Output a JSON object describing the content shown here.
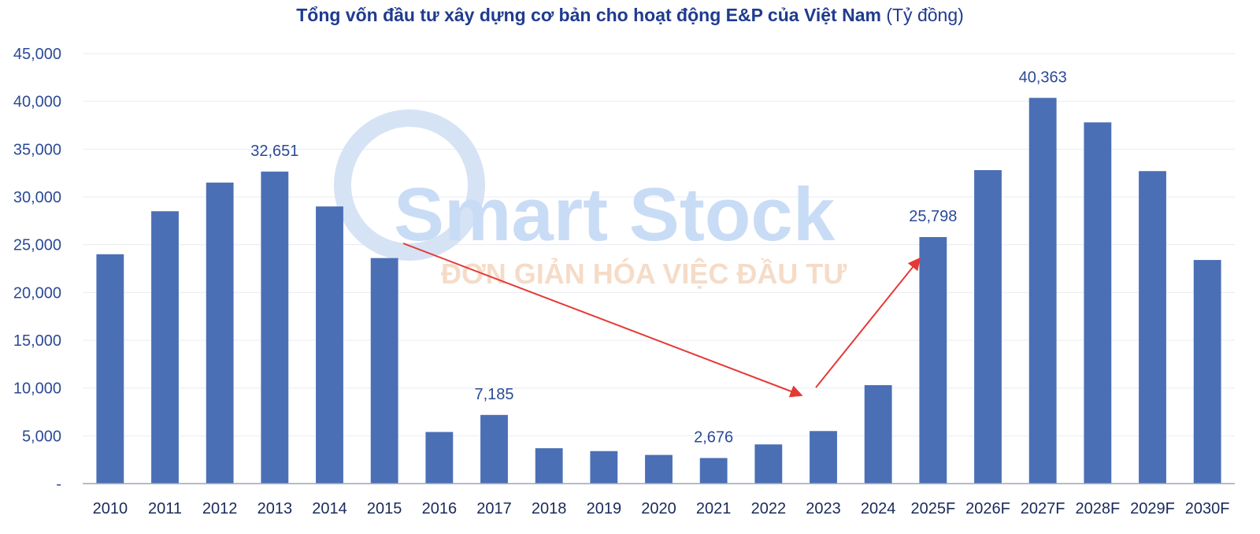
{
  "watermark": {
    "brand": "Smart Stock",
    "tagline": "ĐƠN GIẢN HÓA VIỆC ĐẦU TƯ"
  },
  "chart_data": {
    "type": "bar",
    "title": "Tổng vốn đầu tư xây dựng cơ bản cho hoạt động E&P của Việt Nam",
    "title_unit": "(Tỷ đồng)",
    "categories": [
      "2010",
      "2011",
      "2012",
      "2013",
      "2014",
      "2015",
      "2016",
      "2017",
      "2018",
      "2019",
      "2020",
      "2021",
      "2022",
      "2023",
      "2024",
      "2025F",
      "2026F",
      "2027F",
      "2028F",
      "2029F",
      "2030F"
    ],
    "values": [
      24000,
      28500,
      31500,
      32651,
      29000,
      23600,
      5400,
      7185,
      3700,
      3400,
      3000,
      2676,
      4100,
      5500,
      10300,
      25798,
      32800,
      40363,
      37800,
      32700,
      23400
    ],
    "data_labels": {
      "2013": "32,651",
      "2017": "7,185",
      "2021": "2,676",
      "2025F": "25,798",
      "2027F": "40,363"
    },
    "y_ticks": [
      "-",
      "5,000",
      "10,000",
      "15,000",
      "20,000",
      "25,000",
      "30,000",
      "35,000",
      "40,000",
      "45,000"
    ],
    "ylim": [
      0,
      45000
    ],
    "xlabel": "",
    "ylabel": "",
    "bar_color": "#4a6fb5",
    "arrow_color": "#e53935",
    "grid": true,
    "legend": "none"
  }
}
